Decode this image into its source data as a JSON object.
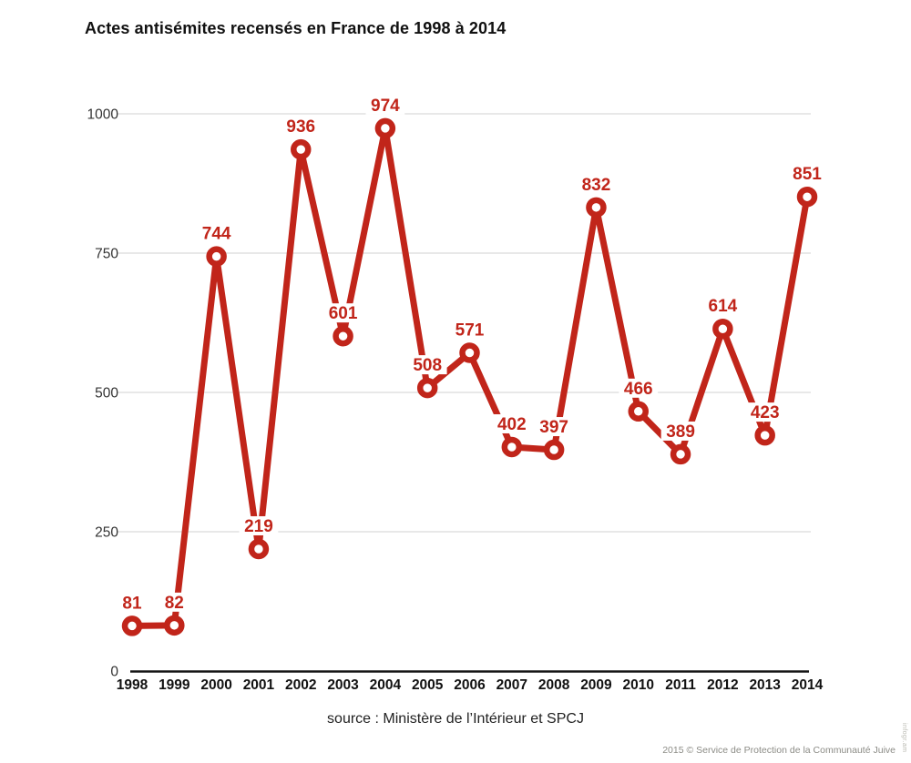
{
  "title": "Actes antisémites recensés en France de 1998 à 2014",
  "source_caption": "source : Ministère de l’Intérieur et SPCJ",
  "footer": {
    "copyright": "2015 © Service de Protection de la Communauté Juive",
    "watermark": "infogr.am"
  },
  "colors": {
    "accent_red": "#c1251a",
    "grid": "#d9d9d9",
    "axis": "#161616",
    "y_tick_label": "#333333",
    "x_tick_label": "#111111",
    "title_text": "#111111",
    "source_text": "#222222",
    "copyright_text": "#8c8c86",
    "background": "#ffffff"
  },
  "chart_data": {
    "type": "line",
    "title": "Actes antisémites recensés en France de 1998 à 2014",
    "categories": [
      "1998",
      "1999",
      "2000",
      "2001",
      "2002",
      "2003",
      "2004",
      "2005",
      "2006",
      "2007",
      "2008",
      "2009",
      "2010",
      "2011",
      "2012",
      "2013",
      "2014"
    ],
    "values": [
      81,
      82,
      744,
      219,
      936,
      601,
      974,
      508,
      571,
      402,
      397,
      832,
      466,
      389,
      614,
      423,
      851
    ],
    "xlabel": "",
    "ylabel": "",
    "ylim": [
      0,
      1000
    ],
    "yticks": [
      0,
      250,
      500,
      750,
      1000
    ],
    "grid": "horizontal-only",
    "legend": "none",
    "line_color": "#c1251a",
    "marker": "open-circle",
    "value_labels": "above-points-with-white-halo",
    "source": "source : Ministère de l’Intérieur et SPCJ"
  }
}
